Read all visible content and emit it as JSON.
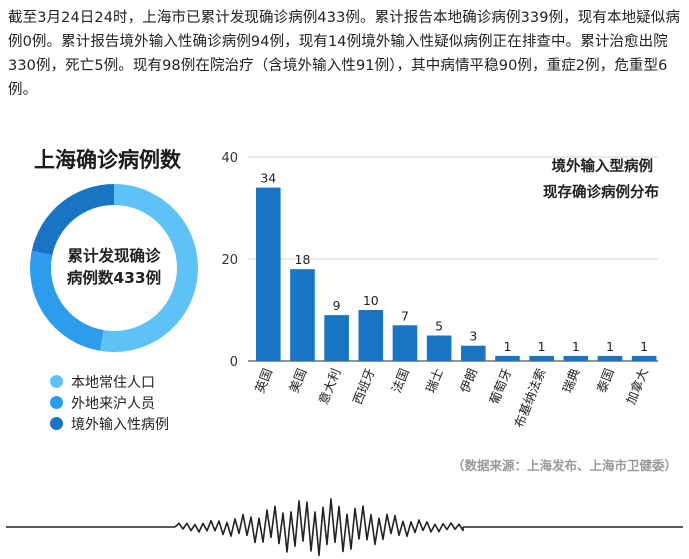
{
  "paragraph": "截至3月24日24时，上海市已累计发现确诊病例433例。累计报告本地确诊病例339例，现有本地疑似病例0例。累计报告境外输入性确诊病例94例，现有14例境外输入性疑似病例正在排查中。累计治愈出院330例，死亡5例。现有98例在院治疗（含境外输入性91例），其中病情平稳90例，重症2例，危重型6例。",
  "donut": {
    "title": "上海确诊病例数",
    "center_line1": "累计发现确诊",
    "center_line2": "病例数433例",
    "legend": [
      {
        "label": "本地常住人口",
        "color": "#5ec2f7"
      },
      {
        "label": "外地来沪人员",
        "color": "#2e9cec"
      },
      {
        "label": "境外输入性病例",
        "color": "#1a74c4"
      }
    ]
  },
  "source": "（数据来源：上海发布、上海市卫健委）",
  "chart_data": [
    {
      "type": "pie",
      "title": "上海确诊病例数",
      "total": 433,
      "categories": [
        "本地常住人口",
        "外地来沪人员",
        "境外输入性病例"
      ],
      "values": [
        228,
        111,
        94
      ],
      "colors": [
        "#5ec2f7",
        "#2e9cec",
        "#1a74c4"
      ],
      "legend": "bottom"
    },
    {
      "type": "bar",
      "title_line1": "境外输入型病例",
      "title_line2": "现存确诊病例分布",
      "categories": [
        "英国",
        "美国",
        "意大利",
        "西班牙",
        "法国",
        "瑞士",
        "伊朗",
        "葡萄牙",
        "布基纳法索",
        "瑞典",
        "泰国",
        "加拿大"
      ],
      "values": [
        34,
        18,
        9,
        10,
        7,
        5,
        3,
        1,
        1,
        1,
        1,
        1
      ],
      "ylim": [
        0,
        40
      ],
      "yticks": [
        0,
        20,
        40
      ],
      "grid": true,
      "color": "#1a74c4"
    }
  ]
}
